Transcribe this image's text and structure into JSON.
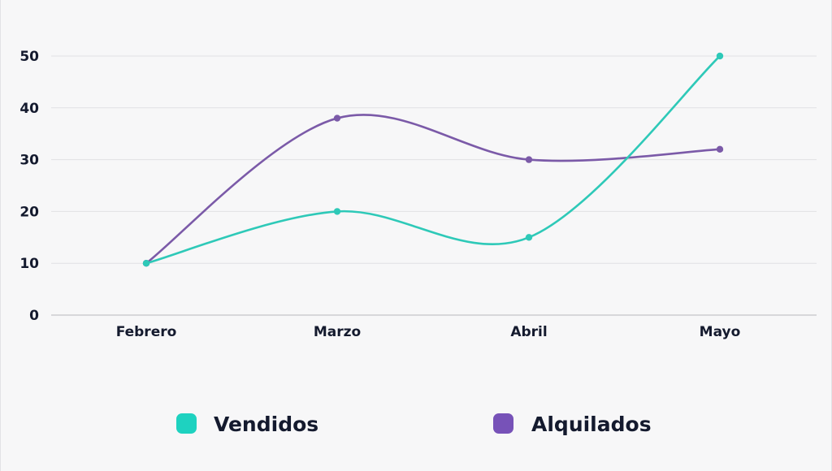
{
  "chart_data": {
    "type": "line",
    "categories": [
      "Febrero",
      "Marzo",
      "Abril",
      "Mayo"
    ],
    "series": [
      {
        "name": "Vendidos",
        "values": [
          10,
          20,
          15,
          50
        ],
        "color": "#2ec9b8"
      },
      {
        "name": "Alquilados",
        "values": [
          10,
          38,
          30,
          32
        ],
        "color": "#7b5aa8"
      }
    ],
    "yticks": [
      0,
      10,
      20,
      30,
      40,
      50
    ],
    "ylim": [
      0,
      50
    ],
    "grid": true,
    "legend_position": "bottom",
    "legend_colors": {
      "Vendidos": "#1ed2c0",
      "Alquilados": "#7752b8"
    },
    "curve": "smooth"
  }
}
